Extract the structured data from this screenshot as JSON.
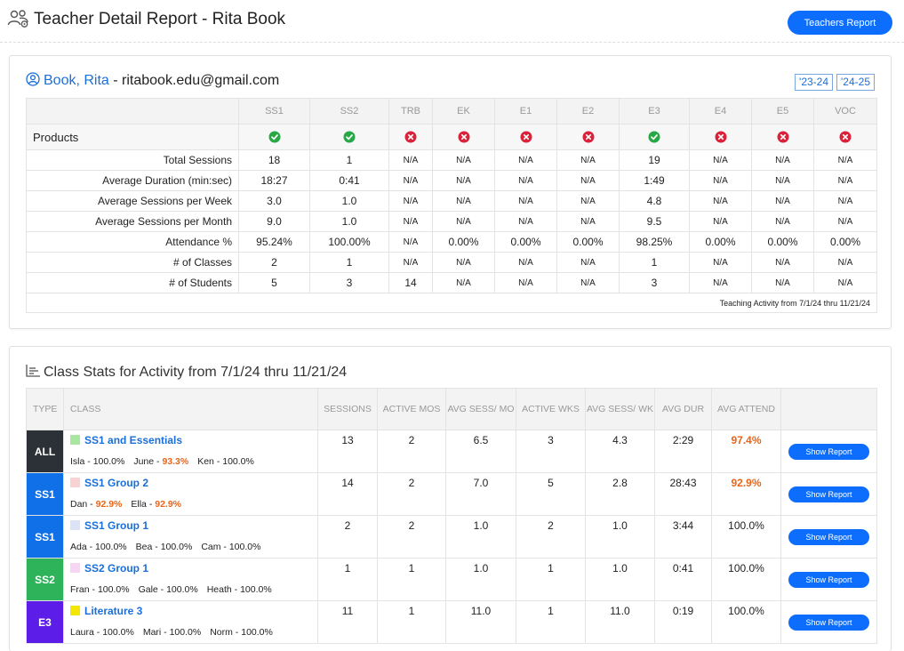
{
  "header": {
    "title": "Teacher Detail Report - Rita Book",
    "teachers_report_label": "Teachers Report",
    "icon": "teacher-group-icon"
  },
  "teacher": {
    "name": "Book, Rita",
    "separator": " - ",
    "email": "ritabook.edu@gmail.com",
    "years": [
      "'23-24",
      "'24-25"
    ]
  },
  "products_table": {
    "columns": [
      "SS1",
      "SS2",
      "TRB",
      "EK",
      "E1",
      "E2",
      "E3",
      "E4",
      "E5",
      "VOC"
    ],
    "products_label": "Products",
    "products_status": [
      "yes",
      "yes",
      "no",
      "no",
      "no",
      "no",
      "yes",
      "no",
      "no",
      "no"
    ],
    "status_colors": {
      "yes": "#28a745",
      "no": "#d9233a"
    },
    "rows": [
      {
        "label": "Total Sessions",
        "values": [
          "18",
          "1",
          "N/A",
          "N/A",
          "N/A",
          "N/A",
          "19",
          "N/A",
          "N/A",
          "N/A"
        ]
      },
      {
        "label": "Average Duration (min:sec)",
        "values": [
          "18:27",
          "0:41",
          "N/A",
          "N/A",
          "N/A",
          "N/A",
          "1:49",
          "N/A",
          "N/A",
          "N/A"
        ]
      },
      {
        "label": "Average Sessions per Week",
        "values": [
          "3.0",
          "1.0",
          "N/A",
          "N/A",
          "N/A",
          "N/A",
          "4.8",
          "N/A",
          "N/A",
          "N/A"
        ]
      },
      {
        "label": "Average Sessions per Month",
        "values": [
          "9.0",
          "1.0",
          "N/A",
          "N/A",
          "N/A",
          "N/A",
          "9.5",
          "N/A",
          "N/A",
          "N/A"
        ]
      },
      {
        "label": "Attendance %",
        "values": [
          "95.24%",
          "100.00%",
          "N/A",
          "0.00%",
          "0.00%",
          "0.00%",
          "98.25%",
          "0.00%",
          "0.00%",
          "0.00%"
        ]
      },
      {
        "label": "# of Classes",
        "values": [
          "2",
          "1",
          "N/A",
          "N/A",
          "N/A",
          "N/A",
          "1",
          "N/A",
          "N/A",
          "N/A"
        ]
      },
      {
        "label": "# of Students",
        "values": [
          "5",
          "3",
          "14",
          "N/A",
          "N/A",
          "N/A",
          "3",
          "N/A",
          "N/A",
          "N/A"
        ]
      }
    ],
    "footnote": "Teaching Activity from 7/1/24 thru 11/21/24"
  },
  "class_stats": {
    "title": "Class Stats for Activity from 7/1/24 thru 11/21/24",
    "headers": [
      "TYPE",
      "CLASS",
      "SESSIONS",
      "ACTIVE MOS",
      "AVG SESS/ MO",
      "ACTIVE WKS",
      "AVG SESS/ WK",
      "AVG DUR",
      "AVG ATTEND",
      ""
    ],
    "show_report_label": "Show Report",
    "classes": [
      {
        "type": "ALL",
        "type_color": "#2b3137",
        "name": "SS1 and Essentials",
        "swatch": "#a8e6a1",
        "sessions": "13",
        "active_mos": "2",
        "avg_sess_mo": "6.5",
        "active_wks": "3",
        "avg_sess_wk": "4.3",
        "avg_dur": "2:29",
        "avg_attend": "97.4%",
        "attend_warn": true,
        "students": [
          {
            "name": "Isla",
            "pct": "100.0%",
            "warn": false
          },
          {
            "name": "June",
            "pct": "93.3%",
            "warn": true
          },
          {
            "name": "Ken",
            "pct": "100.0%",
            "warn": false
          }
        ]
      },
      {
        "type": "SS1",
        "type_color": "#1070e8",
        "name": "SS1 Group 2",
        "swatch": "#f9d3d3",
        "sessions": "14",
        "active_mos": "2",
        "avg_sess_mo": "7.0",
        "active_wks": "5",
        "avg_sess_wk": "2.8",
        "avg_dur": "28:43",
        "avg_attend": "92.9%",
        "attend_warn": true,
        "students": [
          {
            "name": "Dan",
            "pct": "92.9%",
            "warn": true
          },
          {
            "name": "Ella",
            "pct": "92.9%",
            "warn": true
          }
        ]
      },
      {
        "type": "SS1",
        "type_color": "#1070e8",
        "name": "SS1 Group 1",
        "swatch": "#dde3f7",
        "sessions": "2",
        "active_mos": "2",
        "avg_sess_mo": "1.0",
        "active_wks": "2",
        "avg_sess_wk": "1.0",
        "avg_dur": "3:44",
        "avg_attend": "100.0%",
        "attend_warn": false,
        "students": [
          {
            "name": "Ada",
            "pct": "100.0%",
            "warn": false
          },
          {
            "name": "Bea",
            "pct": "100.0%",
            "warn": false
          },
          {
            "name": "Cam",
            "pct": "100.0%",
            "warn": false
          }
        ]
      },
      {
        "type": "SS2",
        "type_color": "#2fb35a",
        "name": "SS2 Group 1",
        "swatch": "#f6d6f3",
        "sessions": "1",
        "active_mos": "1",
        "avg_sess_mo": "1.0",
        "active_wks": "1",
        "avg_sess_wk": "1.0",
        "avg_dur": "0:41",
        "avg_attend": "100.0%",
        "attend_warn": false,
        "students": [
          {
            "name": "Fran",
            "pct": "100.0%",
            "warn": false
          },
          {
            "name": "Gale",
            "pct": "100.0%",
            "warn": false
          },
          {
            "name": "Heath",
            "pct": "100.0%",
            "warn": false
          }
        ]
      },
      {
        "type": "E3",
        "type_color": "#5c1de8",
        "name": "Literature 3",
        "swatch": "#f3e600",
        "sessions": "11",
        "active_mos": "1",
        "avg_sess_mo": "11.0",
        "active_wks": "1",
        "avg_sess_wk": "11.0",
        "avg_dur": "0:19",
        "avg_attend": "100.0%",
        "attend_warn": false,
        "students": [
          {
            "name": "Laura",
            "pct": "100.0%",
            "warn": false
          },
          {
            "name": "Mari",
            "pct": "100.0%",
            "warn": false
          },
          {
            "name": "Norm",
            "pct": "100.0%",
            "warn": false
          }
        ]
      }
    ]
  }
}
